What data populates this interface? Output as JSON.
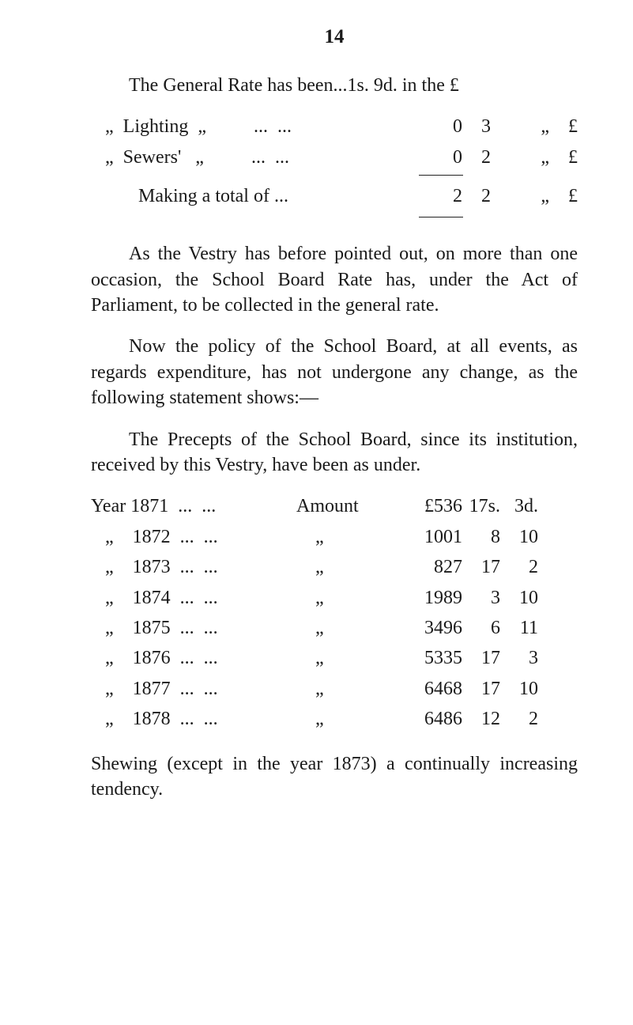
{
  "page_number": "14",
  "rates": {
    "intro": "The General Rate has been...1s. 9d. in the £",
    "rows": [
      {
        "left": "   „  Lighting  „          ...  ...",
        "s": "0",
        "d": "3",
        "unit": "„    £"
      },
      {
        "left": "   „  Sewers'   „          ...  ...",
        "s": "0",
        "d": "2",
        "unit": "„    £"
      }
    ],
    "total": {
      "left": "          Making a total of ...",
      "s": "2",
      "d": "2",
      "unit": "„    £"
    }
  },
  "para_vestry": "As the Vestry has before pointed out, on more than one occasion, the School Board Rate has, under the Act of Parliament, to be collected in the general rate.",
  "para_policy": "Now the policy of the School Board, at all events, as regards expenditure, has not undergone any change, as the following statement shows:—",
  "para_precepts": "The Precepts of the School Board, since its institu­tion, received by this Vestry, have been as under.",
  "precepts": {
    "header": {
      "year": "Year 1871  ...  ...",
      "amt_label": "Amount",
      "l": "£536",
      "s": "17s.",
      "d": "3d."
    },
    "rows": [
      {
        "year": "   „    1872  ...  ...",
        "amt_label": "    „",
        "l": "1001",
        "s": "8",
        "d": "10"
      },
      {
        "year": "   „    1873  ...  ...",
        "amt_label": "    „",
        "l": "827",
        "s": "17",
        "d": "2"
      },
      {
        "year": "   „    1874  ...  ...",
        "amt_label": "    „",
        "l": "1989",
        "s": "3",
        "d": "10"
      },
      {
        "year": "   „    1875  ...  ...",
        "amt_label": "    „",
        "l": "3496",
        "s": "6",
        "d": "11"
      },
      {
        "year": "   „    1876  ...  ...",
        "amt_label": "    „",
        "l": "5335",
        "s": "17",
        "d": "3"
      },
      {
        "year": "   „    1877  ...  ...",
        "amt_label": "    „",
        "l": "6468",
        "s": "17",
        "d": "10"
      },
      {
        "year": "   „    1878  ...  ...",
        "amt_label": "    „",
        "l": "6486",
        "s": "12",
        "d": "2"
      }
    ]
  },
  "para_shewing": "Shewing (except in the year 1873) a continually in­creasing tendency."
}
